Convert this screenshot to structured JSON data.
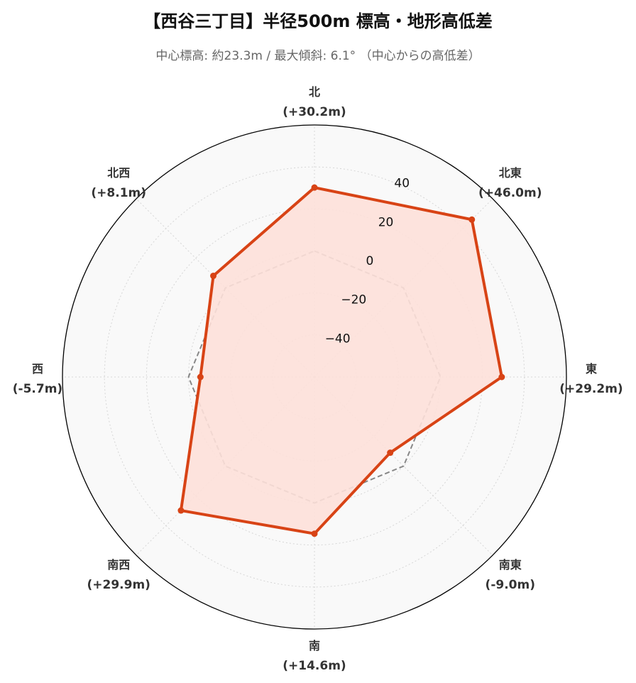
{
  "title": "【西谷三丁目】半径500m 標高・地形高低差",
  "subtitle": "中心標高: 約23.3m / 最大傾斜: 6.1° （中心からの高低差）",
  "chart_data": {
    "type": "radar",
    "directions": [
      {
        "name": "北",
        "label": "(+30.2m)",
        "value": 30.2
      },
      {
        "name": "北東",
        "label": "(+46.0m)",
        "value": 46.0
      },
      {
        "name": "東",
        "label": "(+29.2m)",
        "value": 29.2
      },
      {
        "name": "南東",
        "label": "(-9.0m)",
        "value": -9.0
      },
      {
        "name": "南",
        "label": "(+14.6m)",
        "value": 14.6
      },
      {
        "name": "南西",
        "label": "(+29.9m)",
        "value": 29.9
      },
      {
        "name": "西",
        "label": "(-5.7m)",
        "value": -5.7
      },
      {
        "name": "北西",
        "label": "(+8.1m)",
        "value": 8.1
      }
    ],
    "series": [
      {
        "values": [
          30.2,
          46.0,
          29.2,
          -9.0,
          14.6,
          29.9,
          -5.7,
          8.1
        ]
      },
      {
        "values": [
          0,
          0,
          0,
          0,
          0,
          0,
          0,
          0
        ],
        "style": "dashed"
      }
    ],
    "r_ticks": [
      "−40",
      "−20",
      "0",
      "20",
      "40"
    ],
    "r_tick_values": [
      -40,
      -20,
      0,
      20,
      40
    ],
    "rlim": [
      -60,
      60
    ],
    "grid": true,
    "colors": {
      "line": "#d84315",
      "fill": "#fde0d9",
      "baseline": "#888888",
      "background": "#f9f9f9"
    }
  }
}
